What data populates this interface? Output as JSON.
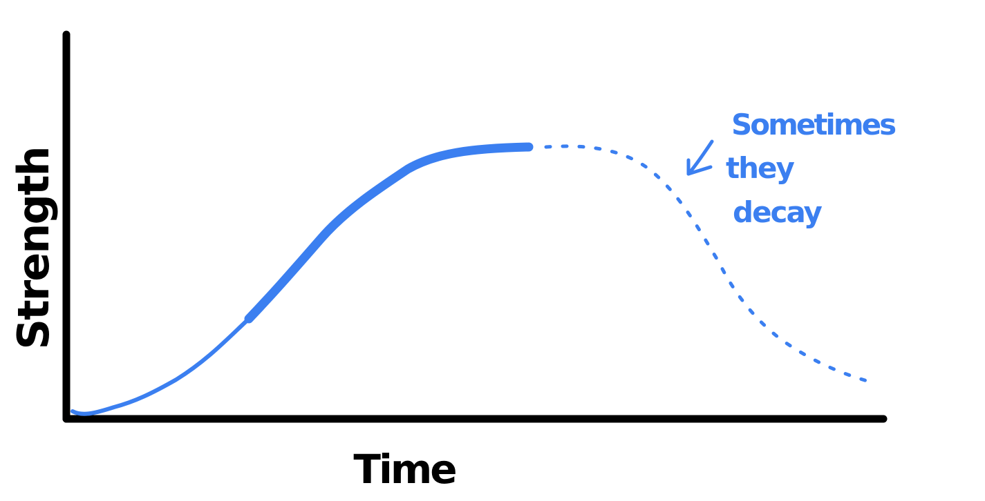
{
  "diagram": {
    "y_axis_label": "Strength",
    "x_axis_label": "Time",
    "annotation": {
      "lines": [
        "Sometimes",
        "they",
        "decay"
      ]
    },
    "curve_color": "#3b7ff0",
    "axis_color": "#000000",
    "solid_curve_description": "rise-then-plateau",
    "dotted_curve_description": "decline"
  }
}
